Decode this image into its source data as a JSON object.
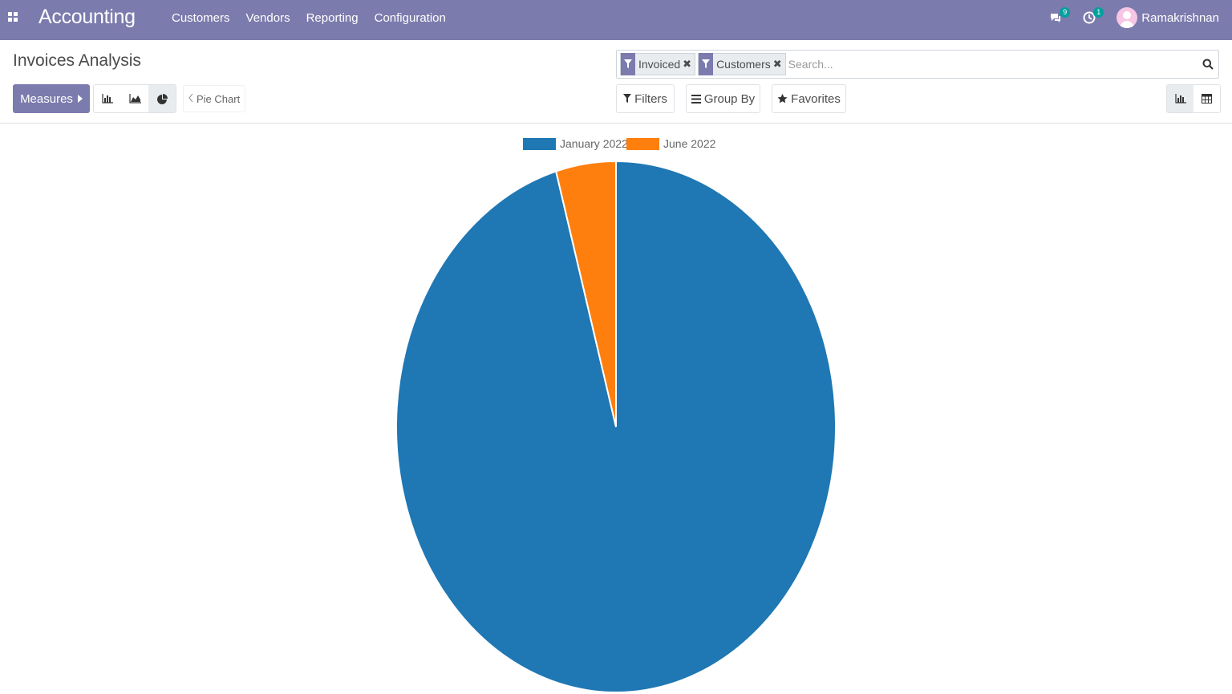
{
  "app": {
    "title": "Accounting"
  },
  "menu": {
    "items": [
      "Customers",
      "Vendors",
      "Reporting",
      "Configuration"
    ]
  },
  "systray": {
    "messages_count": "9",
    "activities_count": "1",
    "user_name": "Ramakrishnan"
  },
  "page": {
    "title": "Invoices Analysis"
  },
  "toolbar": {
    "measures_label": "Measures",
    "chart_type_label": "Pie Chart",
    "filters_label": "Filters",
    "groupby_label": "Group By",
    "favorites_label": "Favorites"
  },
  "search": {
    "facets": [
      "Invoiced",
      "Customers"
    ],
    "placeholder": "Search..."
  },
  "colors": {
    "brand": "#7c7bad",
    "series_1": "#1f77b4",
    "series_2": "#ff7f0e"
  },
  "chart_data": {
    "type": "pie",
    "labels": [
      "January 2022",
      "June 2022"
    ],
    "values": [
      95.6,
      4.4
    ],
    "colors": [
      "#1f77b4",
      "#ff7f0e"
    ],
    "legend": "top"
  }
}
